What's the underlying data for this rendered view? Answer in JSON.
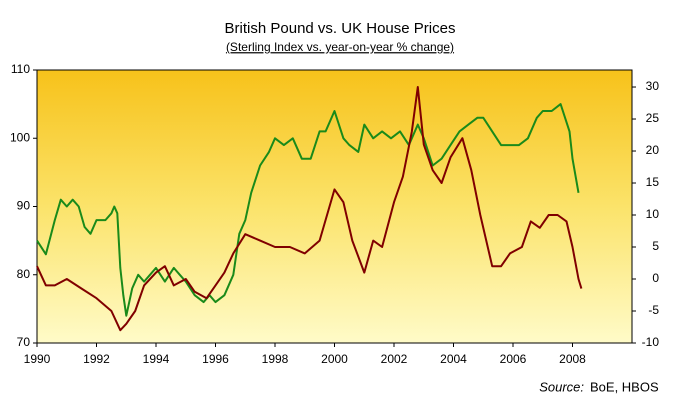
{
  "chart_data": {
    "type": "line",
    "title": "British Pound vs. UK House Prices",
    "subtitle": "(Sterling Index vs. year-on-year % change)",
    "source_label": "Source:",
    "source": "BoE, HBOS",
    "xlim": [
      1990,
      2010
    ],
    "xticks": [
      1990,
      1992,
      1994,
      1996,
      1998,
      2000,
      2002,
      2004,
      2006,
      2008
    ],
    "ylim": [
      70,
      110
    ],
    "yticks": [
      70,
      80,
      90,
      100,
      110
    ],
    "y2lim": [
      -10,
      32.66
    ],
    "y2ticks": [
      -10,
      -5,
      0,
      5,
      10,
      15,
      20,
      25,
      30
    ],
    "grid": false,
    "series": [
      {
        "color": "#1a8a1a",
        "x": [
          1990.0,
          1990.3,
          1990.6,
          1990.8,
          1991.0,
          1991.2,
          1991.4,
          1991.6,
          1991.8,
          1992.0,
          1992.3,
          1992.5,
          1992.6,
          1992.7,
          1992.8,
          1992.9,
          1993.0,
          1993.2,
          1993.4,
          1993.6,
          1993.8,
          1994.0,
          1994.3,
          1994.6,
          1994.8,
          1995.0,
          1995.3,
          1995.6,
          1995.8,
          1996.0,
          1996.3,
          1996.6,
          1996.8,
          1997.0,
          1997.2,
          1997.5,
          1997.8,
          1998.0,
          1998.3,
          1998.6,
          1998.9,
          1999.2,
          1999.5,
          1999.7,
          2000.0,
          2000.3,
          2000.5,
          2000.8,
          2001.0,
          2001.3,
          2001.6,
          2001.9,
          2002.2,
          2002.5,
          2002.8,
          2003.0,
          2003.3,
          2003.6,
          2003.9,
          2004.2,
          2004.5,
          2004.8,
          2005.0,
          2005.3,
          2005.6,
          2005.9,
          2006.2,
          2006.5,
          2006.8,
          2007.0,
          2007.3,
          2007.6,
          2007.9,
          2008.0,
          2008.2
        ],
        "values": [
          85,
          83,
          88,
          91,
          90,
          91,
          90,
          87,
          86,
          88,
          88,
          89,
          90,
          89,
          81,
          77,
          74,
          78,
          80,
          79,
          80,
          81,
          79,
          81,
          80,
          79,
          77,
          76,
          77,
          76,
          77,
          80,
          86,
          88,
          92,
          96,
          98,
          100,
          99,
          100,
          97,
          97,
          101,
          101,
          104,
          100,
          99,
          98,
          102,
          100,
          101,
          100,
          101,
          99,
          102,
          100,
          96,
          97,
          99,
          101,
          102,
          103,
          103,
          101,
          99,
          99,
          99,
          100,
          103,
          104,
          104,
          105,
          101,
          97,
          92
        ]
      },
      {
        "color": "#800000",
        "axis": "y2",
        "x": [
          1990.0,
          1990.3,
          1990.6,
          1991.0,
          1991.5,
          1992.0,
          1992.5,
          1992.8,
          1993.0,
          1993.3,
          1993.6,
          1994.0,
          1994.3,
          1994.6,
          1995.0,
          1995.3,
          1995.7,
          1996.0,
          1996.3,
          1996.6,
          1997.0,
          1997.5,
          1998.0,
          1998.5,
          1999.0,
          1999.5,
          2000.0,
          2000.3,
          2000.6,
          2001.0,
          2001.3,
          2001.6,
          2002.0,
          2002.3,
          2002.6,
          2002.8,
          2003.0,
          2003.3,
          2003.6,
          2003.9,
          2004.3,
          2004.6,
          2004.9,
          2005.3,
          2005.6,
          2005.9,
          2006.3,
          2006.6,
          2006.9,
          2007.2,
          2007.5,
          2007.8,
          2008.0,
          2008.2,
          2008.3
        ],
        "values": [
          2,
          -1,
          -1,
          0,
          -1.5,
          -3,
          -5,
          -8,
          -7,
          -5,
          -1,
          1,
          2,
          -1,
          0,
          -2,
          -3,
          -1,
          1,
          4,
          7,
          6,
          5,
          5,
          4,
          6,
          14,
          12,
          6,
          1,
          6,
          5,
          12,
          16,
          23,
          30,
          21,
          17,
          15,
          19,
          22,
          17,
          10,
          2,
          2,
          4,
          5,
          9,
          8,
          10,
          10,
          9,
          5,
          0,
          -1.5
        ]
      }
    ]
  }
}
